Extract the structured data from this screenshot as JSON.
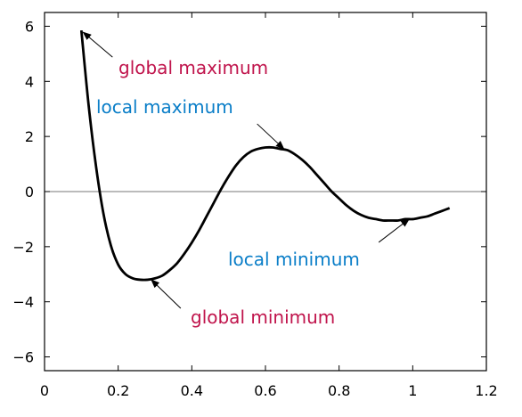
{
  "chart_data": {
    "type": "line",
    "title": "",
    "xlabel": "",
    "ylabel": "",
    "xlim": [
      0,
      1.2
    ],
    "ylim": [
      -6.5,
      6.5
    ],
    "grid": false,
    "x_ticks": [
      0,
      0.2,
      0.4,
      0.6,
      0.8,
      1,
      1.2
    ],
    "x_tick_labels": [
      "0",
      "0.2",
      "0.4",
      "0.6",
      "0.8",
      "1",
      "1.2"
    ],
    "y_ticks": [
      -6,
      -4,
      -2,
      0,
      2,
      4,
      6
    ],
    "y_tick_labels": [
      "−6",
      "−4",
      "−2",
      "0",
      "2",
      "4",
      "6"
    ],
    "zero_line": true,
    "series": [
      {
        "color": "#000000",
        "x": [
          0.1,
          0.12,
          0.14,
          0.16,
          0.18,
          0.2,
          0.22,
          0.24,
          0.26,
          0.28,
          0.3,
          0.32,
          0.34,
          0.36,
          0.38,
          0.4,
          0.42,
          0.44,
          0.46,
          0.48,
          0.5,
          0.52,
          0.54,
          0.56,
          0.58,
          0.6,
          0.62,
          0.64,
          0.66,
          0.68,
          0.7,
          0.72,
          0.74,
          0.76,
          0.78,
          0.8,
          0.82,
          0.84,
          0.86,
          0.88,
          0.9,
          0.92,
          0.94,
          0.96,
          0.98,
          1.0,
          1.02,
          1.04,
          1.06,
          1.08,
          1.1
        ],
        "y": [
          5.85,
          3.1,
          0.9,
          -0.8,
          -1.95,
          -2.65,
          -3.0,
          -3.15,
          -3.2,
          -3.2,
          -3.15,
          -3.05,
          -2.85,
          -2.6,
          -2.25,
          -1.85,
          -1.4,
          -0.9,
          -0.4,
          0.1,
          0.55,
          0.95,
          1.25,
          1.45,
          1.55,
          1.6,
          1.6,
          1.55,
          1.5,
          1.35,
          1.15,
          0.9,
          0.6,
          0.3,
          0.0,
          -0.25,
          -0.5,
          -0.7,
          -0.85,
          -0.95,
          -1.0,
          -1.05,
          -1.05,
          -1.05,
          -1.0,
          -1.0,
          -0.95,
          -0.9,
          -0.8,
          -0.7,
          -0.6
        ]
      }
    ],
    "annotations": [
      {
        "text": "global maximum",
        "color": "#c0144c",
        "point": [
          0.1,
          5.85
        ]
      },
      {
        "text": "local maximum",
        "color": "#0a7ec8",
        "point": [
          0.65,
          1.55
        ]
      },
      {
        "text": "local minimum",
        "color": "#0a7ec8",
        "point": [
          0.99,
          -1.0
        ]
      },
      {
        "text": "global minimum",
        "color": "#c0144c",
        "point": [
          0.29,
          -3.2
        ]
      }
    ]
  }
}
